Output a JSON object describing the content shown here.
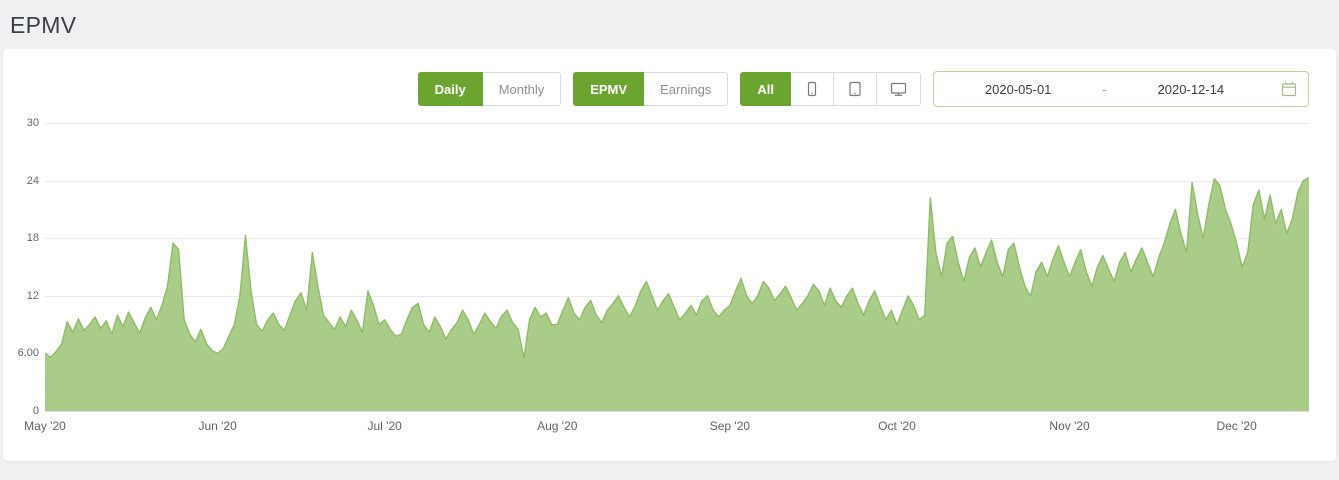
{
  "page": {
    "title": "EPMV"
  },
  "toolbar": {
    "frequency": [
      {
        "label": "Daily",
        "active": true
      },
      {
        "label": "Monthly",
        "active": false
      }
    ],
    "metric": [
      {
        "label": "EPMV",
        "active": true
      },
      {
        "label": "Earnings",
        "active": false
      }
    ],
    "device_filter": {
      "all_label": "All",
      "devices": [
        "mobile-icon",
        "tablet-icon",
        "desktop-icon"
      ]
    },
    "date_range": {
      "start": "2020-05-01",
      "separator": "-",
      "end": "2020-12-14",
      "icon": "calendar-icon"
    }
  },
  "colors": {
    "accent_green": "#6ba52f",
    "chart_fill": "#a9cd89",
    "chart_stroke": "#8fbc66",
    "date_border": "#b7d694"
  },
  "chart_data": {
    "type": "area",
    "title": "EPMV",
    "xlabel": "",
    "ylabel": "",
    "y_min": 0,
    "y_max": 30,
    "grid": true,
    "legend": "none",
    "x_range": [
      "2020-05-01",
      "2020-12-14"
    ],
    "y_ticks": [
      "30",
      "24",
      "18",
      "12",
      "6.00",
      "0"
    ],
    "x_ticks": [
      {
        "label": "May '20",
        "index": 0
      },
      {
        "label": "Jun '20",
        "index": 31
      },
      {
        "label": "Jul '20",
        "index": 61
      },
      {
        "label": "Aug '20",
        "index": 92
      },
      {
        "label": "Sep '20",
        "index": 123
      },
      {
        "label": "Oct '20",
        "index": 153
      },
      {
        "label": "Nov '20",
        "index": 184
      },
      {
        "label": "Dec '20",
        "index": 214
      }
    ],
    "values": [
      6.0,
      5.6,
      6.2,
      7.0,
      9.3,
      8.2,
      9.6,
      8.4,
      9.0,
      9.8,
      8.6,
      9.4,
      8.0,
      10.0,
      8.8,
      10.3,
      9.2,
      8.1,
      9.7,
      10.8,
      9.5,
      11.0,
      13.0,
      17.5,
      16.8,
      9.5,
      8.0,
      7.2,
      8.5,
      7.0,
      6.3,
      6.0,
      6.5,
      7.8,
      9.0,
      12.0,
      18.3,
      12.5,
      9.0,
      8.3,
      9.5,
      10.2,
      9.0,
      8.4,
      10.0,
      11.5,
      12.3,
      10.5,
      16.5,
      13.0,
      10.0,
      9.2,
      8.5,
      9.8,
      8.8,
      10.5,
      9.5,
      8.2,
      12.5,
      11.0,
      9.0,
      9.5,
      8.5,
      7.8,
      8.0,
      9.5,
      10.8,
      11.2,
      9.0,
      8.2,
      9.8,
      8.8,
      7.5,
      8.5,
      9.2,
      10.5,
      9.5,
      8.0,
      9.0,
      10.2,
      9.3,
      8.6,
      9.9,
      10.5,
      9.2,
      8.5,
      5.5,
      9.5,
      10.8,
      9.8,
      10.2,
      9.0,
      9.0,
      10.5,
      11.8,
      10.2,
      9.5,
      10.8,
      11.5,
      10.0,
      9.2,
      10.5,
      11.2,
      12.0,
      10.8,
      9.8,
      11.0,
      12.5,
      13.5,
      12.0,
      10.5,
      11.5,
      12.2,
      10.8,
      9.5,
      10.2,
      11.0,
      10.0,
      11.5,
      12.0,
      10.5,
      9.8,
      10.5,
      11.0,
      12.5,
      13.8,
      12.0,
      11.2,
      12.0,
      13.5,
      12.8,
      11.5,
      12.2,
      13.0,
      11.8,
      10.5,
      11.2,
      12.0,
      13.2,
      12.5,
      11.0,
      12.8,
      11.5,
      10.8,
      12.0,
      12.8,
      11.2,
      10.0,
      11.5,
      12.5,
      11.0,
      9.5,
      10.5,
      9.0,
      10.5,
      12.0,
      11.0,
      9.5,
      10.0,
      22.2,
      16.5,
      14.0,
      17.5,
      18.2,
      15.5,
      13.5,
      16.0,
      17.0,
      15.0,
      16.5,
      17.8,
      15.5,
      14.0,
      16.8,
      17.5,
      15.0,
      13.0,
      12.0,
      14.5,
      15.5,
      14.0,
      15.8,
      17.2,
      15.5,
      14.0,
      15.5,
      16.8,
      14.5,
      13.0,
      15.0,
      16.2,
      14.8,
      13.5,
      15.5,
      16.5,
      14.5,
      15.8,
      17.0,
      15.5,
      14.0,
      16.0,
      17.5,
      19.5,
      21.0,
      18.5,
      16.5,
      23.8,
      20.5,
      18.0,
      21.5,
      24.2,
      23.5,
      21.0,
      19.5,
      17.5,
      15.0,
      16.5,
      21.5,
      23.0,
      20.0,
      22.5,
      19.5,
      21.0,
      18.5,
      20.0,
      22.8,
      24.0,
      24.3
    ]
  }
}
